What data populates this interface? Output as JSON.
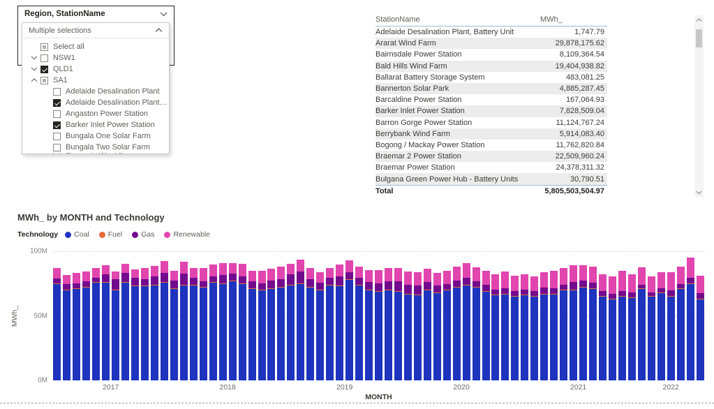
{
  "slicer": {
    "title": "Region, StationName",
    "selection_summary": "Multiple selections",
    "items": [
      {
        "label": "Select all",
        "state": "partial",
        "indent": 0,
        "expander": null
      },
      {
        "label": "NSW1",
        "state": "unchecked",
        "indent": 0,
        "expander": "down"
      },
      {
        "label": "QLD1",
        "state": "checked",
        "indent": 0,
        "expander": "down"
      },
      {
        "label": "SA1",
        "state": "partial",
        "indent": 0,
        "expander": "up"
      },
      {
        "label": "Adelaide Desalination Plant",
        "state": "unchecked",
        "indent": 1,
        "expander": null
      },
      {
        "label": "Adelaide Desalination Plant, Bat...",
        "state": "checked",
        "indent": 1,
        "expander": null
      },
      {
        "label": "Angaston Power Station",
        "state": "unchecked",
        "indent": 1,
        "expander": null
      },
      {
        "label": "Barker Inlet Power Station",
        "state": "checked",
        "indent": 1,
        "expander": null
      },
      {
        "label": "Bungala One Solar Farm",
        "state": "unchecked",
        "indent": 1,
        "expander": null
      },
      {
        "label": "Bungala Two Solar Farm",
        "state": "unchecked",
        "indent": 1,
        "expander": null
      },
      {
        "label": "Canunda Wind Farm",
        "state": "unchecked",
        "indent": 1,
        "expander": null,
        "clipped": true
      }
    ]
  },
  "table": {
    "columns": [
      "StationName",
      "MWh_"
    ],
    "rows": [
      [
        "Adelaide Desalination Plant, Battery Unit",
        "1,747.79"
      ],
      [
        "Ararat Wind Farm",
        "29,878,175.62"
      ],
      [
        "Bairnsdale Power Station",
        "8,109,364.54"
      ],
      [
        "Bald Hills Wind Farm",
        "19,404,938.82"
      ],
      [
        "Ballarat Battery Storage System",
        "483,081.25"
      ],
      [
        "Bannerton Solar Park",
        "4,885,287.45"
      ],
      [
        "Barcaldine Power Station",
        "167,064.93"
      ],
      [
        "Barker Inlet Power Station",
        "7,828,509.04"
      ],
      [
        "Barron Gorge Power Station",
        "11,124,767.24"
      ],
      [
        "Berrybank Wind Farm",
        "5,914,083.40"
      ],
      [
        "Bogong / Mackay Power Station",
        "11,762,820.84"
      ],
      [
        "Braemar 2 Power Station",
        "22,509,960.24"
      ],
      [
        "Braemar Power Station",
        "24,378,311.32"
      ],
      [
        "Bulgana Green Power Hub - Battery Units",
        "30,790.51"
      ]
    ],
    "total_label": "Total",
    "total_value": "5,805,503,504.97"
  },
  "chart": {
    "title": "MWh_ by MONTH and Technology",
    "legend_title": "Technology"
  },
  "chart_data": {
    "type": "bar",
    "stacked": true,
    "title": "MWh_ by MONTH and Technology",
    "xlabel": "MONTH",
    "ylabel": "MWh_",
    "units": "millions of MWh (values are approximate, read from 0M-100M axis)",
    "ylim": [
      0,
      100
    ],
    "yticks": [
      {
        "value": 0,
        "label": "0M"
      },
      {
        "value": 50,
        "label": "50M"
      },
      {
        "value": 100,
        "label": "100M"
      }
    ],
    "gridlines": "dotted, horizontal at 50M and 100M",
    "legend_position": "top",
    "x_year_labels": [
      "2017",
      "2018",
      "2019",
      "2020",
      "2021",
      "2022"
    ],
    "x": [
      "2017-01",
      "2017-02",
      "2017-03",
      "2017-04",
      "2017-05",
      "2017-06",
      "2017-07",
      "2017-08",
      "2017-09",
      "2017-10",
      "2017-11",
      "2017-12",
      "2018-01",
      "2018-02",
      "2018-03",
      "2018-04",
      "2018-05",
      "2018-06",
      "2018-07",
      "2018-08",
      "2018-09",
      "2018-10",
      "2018-11",
      "2018-12",
      "2019-01",
      "2019-02",
      "2019-03",
      "2019-04",
      "2019-05",
      "2019-06",
      "2019-07",
      "2019-08",
      "2019-09",
      "2019-10",
      "2019-11",
      "2019-12",
      "2020-01",
      "2020-02",
      "2020-03",
      "2020-04",
      "2020-05",
      "2020-06",
      "2020-07",
      "2020-08",
      "2020-09",
      "2020-10",
      "2020-11",
      "2020-12",
      "2021-01",
      "2021-02",
      "2021-03",
      "2021-04",
      "2021-05",
      "2021-06",
      "2021-07",
      "2021-08",
      "2021-09",
      "2021-10",
      "2021-11",
      "2021-12",
      "2022-01",
      "2022-02",
      "2022-03",
      "2022-04",
      "2022-05",
      "2022-06",
      "2022-07"
    ],
    "series": [
      {
        "name": "Coal",
        "color": "#1E34BE",
        "values": [
          75,
          70,
          71,
          72,
          76,
          76,
          70,
          76,
          73,
          73,
          74,
          76,
          71,
          74,
          74,
          72,
          76,
          75,
          77,
          75,
          71,
          70,
          71,
          72,
          74,
          75,
          72,
          70,
          74,
          73,
          78,
          74,
          70,
          69,
          70,
          69,
          67,
          66,
          70,
          68,
          70,
          72,
          74,
          72,
          69,
          66,
          67,
          65,
          66,
          65,
          67,
          67,
          70,
          70,
          72,
          71,
          65,
          63,
          65,
          64,
          71,
          65,
          68,
          65,
          71,
          75,
          63
        ]
      },
      {
        "name": "Fuel",
        "color": "#E66C37",
        "values": [
          0.3,
          0.3,
          0.3,
          0.3,
          0.3,
          0.3,
          0.3,
          0.3,
          0.3,
          0.3,
          0.3,
          0.3,
          0.3,
          0.3,
          0.3,
          0.3,
          0.3,
          0.3,
          0.3,
          0.3,
          0.3,
          0.3,
          0.3,
          0.3,
          0.3,
          0.3,
          0.3,
          0.3,
          0.3,
          0.3,
          0.3,
          0.3,
          0.3,
          0.3,
          0.3,
          0.3,
          0.3,
          0.3,
          0.3,
          0.3,
          0.3,
          0.3,
          0.3,
          0.3,
          0.3,
          0.3,
          0.3,
          0.3,
          0.3,
          0.3,
          0.3,
          0.3,
          0.3,
          0.3,
          0.3,
          0.3,
          0.3,
          0.3,
          0.3,
          0.3,
          0.3,
          0.3,
          0.3,
          0.3,
          0.3,
          0.3,
          0.3
        ]
      },
      {
        "name": "Gas",
        "color": "#730B8E",
        "values": [
          3.5,
          4.5,
          4,
          4.5,
          3,
          6,
          8,
          7,
          6,
          5,
          6.5,
          7,
          6,
          8.5,
          5,
          4.5,
          4,
          6.5,
          5.5,
          5,
          5.5,
          5,
          6,
          6,
          8,
          9,
          6,
          5.5,
          5,
          7,
          5.5,
          5,
          6,
          6,
          6.5,
          7.5,
          7,
          7,
          6,
          5,
          4.5,
          5,
          5,
          4.5,
          4.5,
          4,
          4,
          4,
          4,
          4,
          4.5,
          4,
          4,
          6,
          5,
          4.5,
          4,
          3.5,
          4,
          4,
          2.5,
          3,
          3,
          4.5,
          3.5,
          4,
          4.5
        ]
      },
      {
        "name": "Renewable",
        "color": "#E145AE",
        "values": [
          8,
          7,
          8,
          7.5,
          7.5,
          7,
          6,
          7,
          6.5,
          9,
          8,
          9,
          7.5,
          9,
          8,
          10,
          9.5,
          9,
          8,
          10,
          8,
          9.5,
          9,
          10,
          8,
          9,
          9,
          8,
          8,
          9.5,
          9,
          9,
          9,
          10,
          10.5,
          10,
          10,
          10.5,
          10,
          10,
          10,
          11,
          11.5,
          11,
          11,
          12,
          13,
          12,
          12,
          11,
          12,
          13.5,
          13,
          13,
          12,
          12.5,
          13,
          14,
          15.5,
          14,
          14,
          12,
          12.5,
          14,
          13.5,
          16,
          13.5
        ]
      }
    ]
  },
  "colors": {
    "coal": "#1E34BE",
    "fuel": "#E66C37",
    "gas": "#730B8E",
    "renewable": "#E145AE",
    "table_rule": "#9FBAD0",
    "row_alt": "#ececec",
    "text_muted": "#605E5C"
  }
}
